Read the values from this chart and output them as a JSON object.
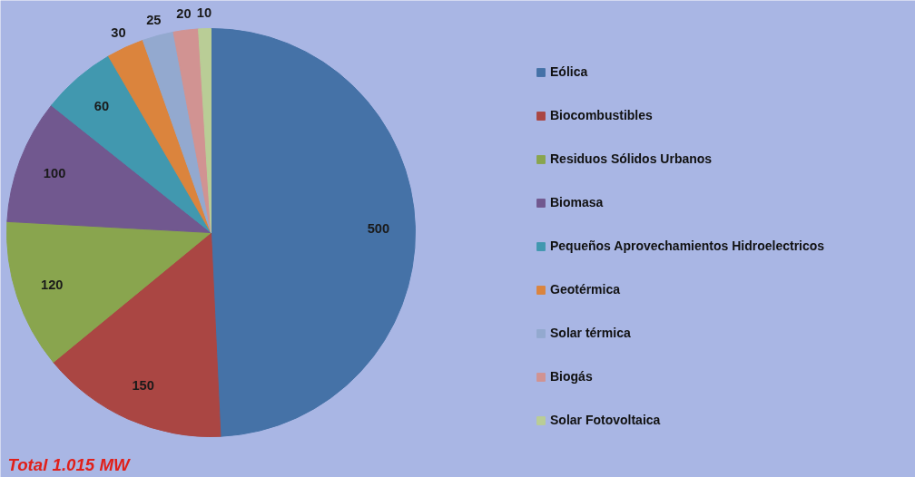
{
  "chart_data": {
    "type": "pie",
    "categories": [
      "Eólica",
      "Biocombustibles",
      "Residuos Sólidos Urbanos",
      "Biomasa",
      "Pequeños Aprovechamientos Hidroelectricos",
      "Geotérmica",
      "Solar térmica",
      "Biogás",
      "Solar Fotovoltaica"
    ],
    "values": [
      500,
      150,
      120,
      100,
      60,
      30,
      25,
      20,
      10
    ],
    "colors": [
      "#4572a7",
      "#aa4643",
      "#89a54e",
      "#71588f",
      "#4198af",
      "#db843d",
      "#93a9cf",
      "#d19392",
      "#b9cd96"
    ],
    "data_labels": true,
    "legend": "right",
    "annotations": [
      "Total 1.015 MW"
    ]
  }
}
